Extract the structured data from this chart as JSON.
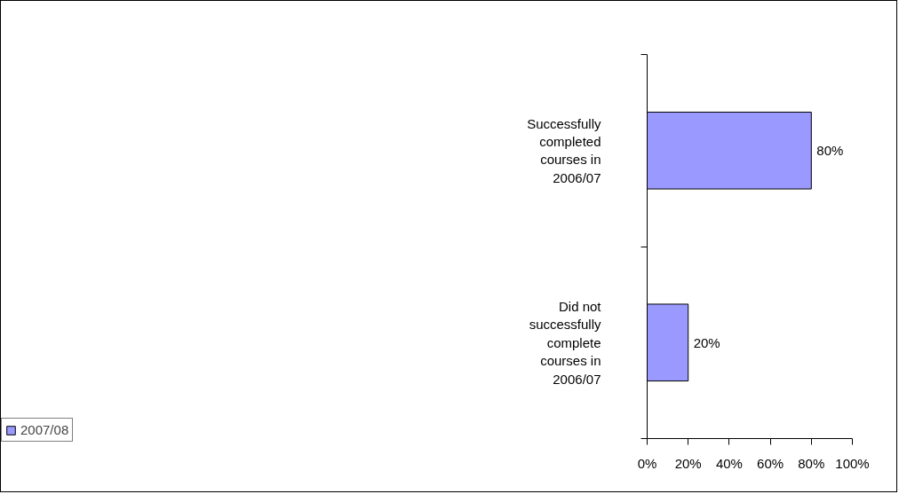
{
  "chart_data": {
    "type": "bar",
    "orientation": "horizontal",
    "categories": [
      "Successfully completed courses in 2006/07",
      "Did not successfully complete courses in 2006/07"
    ],
    "series": [
      {
        "name": "2007/08",
        "color": "#9999ff",
        "values": [
          80,
          20
        ],
        "value_labels": [
          "80%",
          "20%"
        ]
      }
    ],
    "xlim": [
      0,
      100
    ],
    "xticks": [
      {
        "value": 0,
        "label": "0%"
      },
      {
        "value": 20,
        "label": "20%"
      },
      {
        "value": 40,
        "label": "40%"
      },
      {
        "value": 60,
        "label": "60%"
      },
      {
        "value": 80,
        "label": "80%"
      },
      {
        "value": 100,
        "label": "100%"
      }
    ],
    "grid": false,
    "legend": "bottom left"
  }
}
